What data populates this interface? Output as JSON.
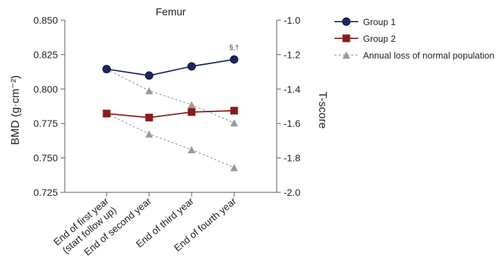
{
  "chart_data": {
    "type": "line",
    "title": "Femur",
    "ylabel": "BMD (g·cm⁻²)",
    "y2label": "T-score",
    "categories": [
      [
        "End of first year",
        "(start follow up)"
      ],
      [
        "End of second year"
      ],
      [
        "End of third year"
      ],
      [
        "End of fourth year"
      ]
    ],
    "ylim": [
      0.725,
      0.85
    ],
    "yticks": [
      "0.725",
      "0.750",
      "0.775",
      "0.800",
      "0.825",
      "0.850"
    ],
    "y2lim": [
      -2.0,
      -1.0
    ],
    "y2ticks": [
      "-1.0",
      "-1.2",
      "-1.4",
      "-1.6",
      "-1.8",
      "-2.0"
    ],
    "grid": false,
    "legend_position": "top-right",
    "annotation": {
      "text": "§,†",
      "series": 0,
      "point": 3
    },
    "series": [
      {
        "name": "Group 1",
        "values": [
          0.8145,
          0.8098,
          0.8165,
          0.8215
        ],
        "color": "#1b2a5e",
        "marker": "circle",
        "dashed": false
      },
      {
        "name": "Group 2",
        "values": [
          0.7822,
          0.7793,
          0.7833,
          0.7843
        ],
        "color": "#8b1a1a",
        "marker": "square",
        "dashed": false
      },
      {
        "name": "Annual loss of normal population",
        "values": [
          0.8145,
          0.7988,
          0.7886,
          0.7755
        ],
        "color": "#999999",
        "marker": "triangle",
        "dashed": true
      },
      {
        "name": "",
        "values": [
          0.7822,
          0.7674,
          0.756,
          0.743
        ],
        "color": "#999999",
        "marker": "triangle",
        "dashed": true
      }
    ]
  }
}
